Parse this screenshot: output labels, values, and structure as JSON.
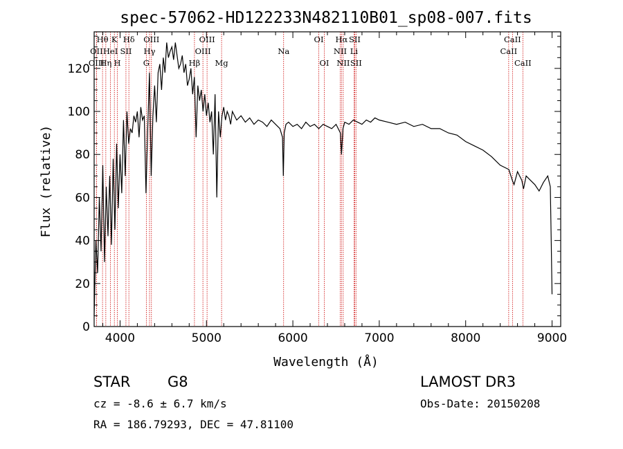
{
  "chart_data": {
    "type": "line",
    "title": "spec-57062-HD122233N482110B01_sp08-007.fits",
    "xlabel": "Wavelength (Å)",
    "ylabel": "Flux (relative)",
    "xlim": [
      3700,
      9100
    ],
    "ylim": [
      0,
      137
    ],
    "xticks": [
      4000,
      5000,
      6000,
      7000,
      8000,
      9000
    ],
    "yticks": [
      0,
      20,
      40,
      60,
      80,
      100,
      120
    ],
    "series": [
      {
        "name": "spectrum",
        "x": [
          3700,
          3720,
          3740,
          3760,
          3780,
          3800,
          3820,
          3840,
          3860,
          3880,
          3900,
          3920,
          3940,
          3960,
          3980,
          4000,
          4020,
          4040,
          4060,
          4080,
          4100,
          4120,
          4140,
          4160,
          4180,
          4200,
          4220,
          4240,
          4260,
          4280,
          4300,
          4320,
          4340,
          4360,
          4380,
          4400,
          4420,
          4440,
          4460,
          4480,
          4500,
          4520,
          4540,
          4560,
          4580,
          4600,
          4620,
          4640,
          4660,
          4680,
          4700,
          4720,
          4740,
          4760,
          4780,
          4800,
          4820,
          4840,
          4860,
          4880,
          4900,
          4920,
          4940,
          4960,
          4980,
          5000,
          5020,
          5040,
          5060,
          5080,
          5100,
          5120,
          5140,
          5160,
          5180,
          5200,
          5220,
          5240,
          5260,
          5280,
          5300,
          5350,
          5400,
          5450,
          5500,
          5550,
          5600,
          5650,
          5700,
          5750,
          5800,
          5850,
          5880,
          5890,
          5900,
          5920,
          5950,
          6000,
          6050,
          6100,
          6150,
          6200,
          6250,
          6300,
          6350,
          6400,
          6450,
          6500,
          6550,
          6563,
          6580,
          6600,
          6650,
          6700,
          6750,
          6800,
          6850,
          6900,
          6950,
          7000,
          7100,
          7200,
          7300,
          7400,
          7500,
          7600,
          7700,
          7800,
          7900,
          8000,
          8100,
          8200,
          8300,
          8400,
          8500,
          8540,
          8560,
          8600,
          8650,
          8670,
          8700,
          8750,
          8800,
          8850,
          8900,
          8950,
          8980,
          8990,
          9000
        ],
        "values": [
          5,
          40,
          25,
          60,
          35,
          75,
          30,
          65,
          42,
          70,
          38,
          78,
          45,
          85,
          55,
          80,
          62,
          96,
          70,
          100,
          85,
          92,
          90,
          98,
          95,
          100,
          88,
          102,
          96,
          98,
          62,
          92,
          118,
          70,
          98,
          112,
          95,
          118,
          122,
          110,
          125,
          118,
          132,
          125,
          128,
          130,
          124,
          132,
          126,
          120,
          122,
          126,
          118,
          122,
          112,
          115,
          120,
          108,
          116,
          88,
          112,
          105,
          110,
          100,
          108,
          98,
          104,
          95,
          100,
          80,
          108,
          60,
          100,
          88,
          98,
          102,
          96,
          100,
          98,
          94,
          100,
          96,
          98,
          95,
          97,
          94,
          96,
          95,
          93,
          96,
          94,
          92,
          88,
          70,
          90,
          94,
          95,
          93,
          94,
          92,
          95,
          93,
          94,
          92,
          94,
          93,
          92,
          94,
          90,
          80,
          92,
          95,
          94,
          96,
          95,
          94,
          96,
          95,
          97,
          96,
          95,
          94,
          95,
          93,
          94,
          92,
          92,
          90,
          89,
          86,
          84,
          82,
          79,
          75,
          73,
          68,
          66,
          72,
          68,
          64,
          70,
          68,
          66,
          63,
          67,
          70,
          65,
          40,
          15
        ]
      }
    ],
    "spectral_lines": [
      {
        "label": "Hθ",
        "x": 3797,
        "row": 0
      },
      {
        "label": "OII",
        "x": 3727,
        "row": 1
      },
      {
        "label": "OIII",
        "x": 3727,
        "row": 2
      },
      {
        "label": "HeI",
        "x": 3889,
        "row": 1
      },
      {
        "label": "K",
        "x": 3934,
        "row": 0
      },
      {
        "label": "SII",
        "x": 4068,
        "row": 1
      },
      {
        "label": "Hη",
        "x": 3835,
        "row": 2
      },
      {
        "label": "H",
        "x": 3969,
        "row": 2
      },
      {
        "label": "Hδ",
        "x": 4102,
        "row": 0
      },
      {
        "label": "OIII",
        "x": 4363,
        "row": 0
      },
      {
        "label": "Hγ",
        "x": 4341,
        "row": 1
      },
      {
        "label": "G",
        "x": 4304,
        "row": 2
      },
      {
        "label": "Hβ",
        "x": 4861,
        "row": 2
      },
      {
        "label": "OIII",
        "x": 5007,
        "row": 0
      },
      {
        "label": "OIII",
        "x": 4959,
        "row": 1
      },
      {
        "label": "Mg",
        "x": 5175,
        "row": 2
      },
      {
        "label": "Na",
        "x": 5893,
        "row": 1
      },
      {
        "label": "OI",
        "x": 6300,
        "row": 0
      },
      {
        "label": "OI",
        "x": 6364,
        "row": 2
      },
      {
        "label": "Hα",
        "x": 6563,
        "row": 0
      },
      {
        "label": "SII",
        "x": 6716,
        "row": 0
      },
      {
        "label": "NII",
        "x": 6548,
        "row": 1
      },
      {
        "label": "Li",
        "x": 6708,
        "row": 1
      },
      {
        "label": "NII",
        "x": 6583,
        "row": 2
      },
      {
        "label": "SII",
        "x": 6731,
        "row": 2
      },
      {
        "label": "CaII",
        "x": 8542,
        "row": 0
      },
      {
        "label": "CaII",
        "x": 8498,
        "row": 1
      },
      {
        "label": "CaII",
        "x": 8662,
        "row": 2
      }
    ],
    "colors": {
      "spectrum": "#000000",
      "lines": "#cc0000",
      "axis": "#000000"
    }
  },
  "info": {
    "object_class": "STAR",
    "subclass": "G8",
    "survey": "LAMOST DR3",
    "cz": "cz = -8.6 ± 6.7 km/s",
    "obs_date": "Obs-Date: 20150208",
    "coords": "RA = 186.79293, DEC =  47.81100"
  }
}
